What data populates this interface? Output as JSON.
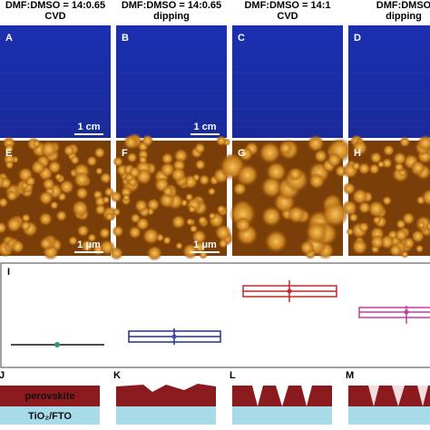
{
  "columns": [
    {
      "header": "DMF:DMSO = 14:0.65",
      "method": "CVD"
    },
    {
      "header": "DMF:DMSO = 14:0.65",
      "method": "dipping"
    },
    {
      "header": "DMF:DMSO = 14:1",
      "method": "CVD"
    },
    {
      "header": "DMF:DMSO",
      "method": "dipping"
    }
  ],
  "panels": {
    "optical": [
      "A",
      "B",
      "C",
      "D"
    ],
    "afm": [
      "E",
      "F",
      "G",
      "H"
    ],
    "boxplot": "I",
    "schematic": [
      "J",
      "K",
      "L",
      "M"
    ]
  },
  "scale_bars": {
    "optical": "1 cm",
    "afm": "1 μm"
  },
  "layers": {
    "top": "perovskite",
    "bottom": "TiO₂/FTO"
  }
}
